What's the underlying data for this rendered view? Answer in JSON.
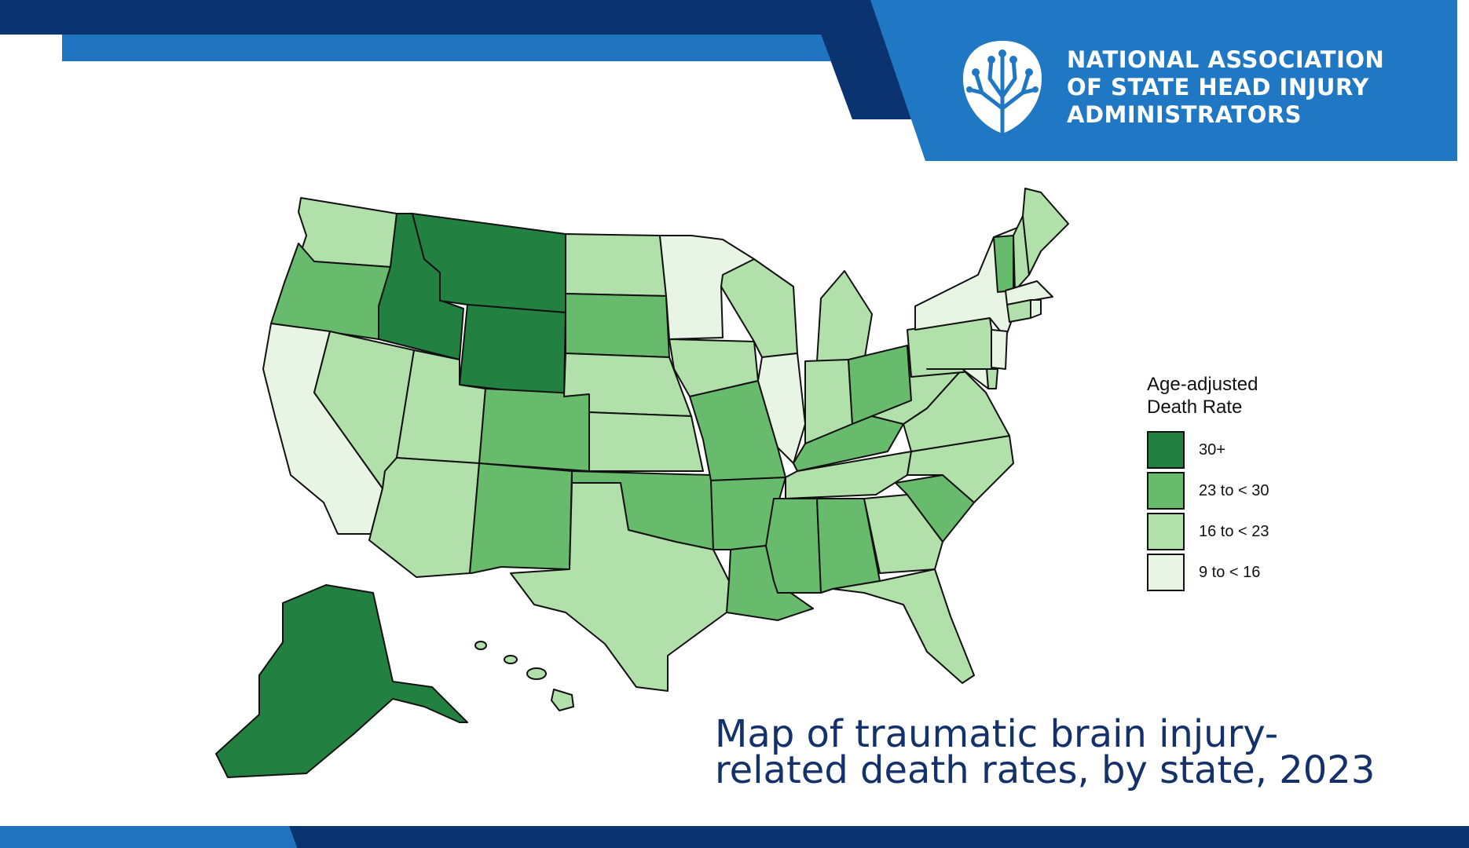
{
  "organization": {
    "name_lines": [
      "NATIONAL ASSOCIATION",
      "OF STATE HEAD INJURY",
      "ADMINISTRATORS"
    ],
    "logo_icon": "brain-tree-icon"
  },
  "colors": {
    "navy": "#0b3370",
    "blue": "#1f73bf",
    "bright_blue": "#2b80cf",
    "caption": "#14316b",
    "state_border": "#111111"
  },
  "legend": {
    "title_lines": [
      "Age-adjusted",
      "Death Rate"
    ],
    "categories": [
      {
        "label": "30+",
        "color": "#228040"
      },
      {
        "label": "23 to < 30",
        "color": "#68ba6c"
      },
      {
        "label": "16 to < 23",
        "color": "#b2e0ab"
      },
      {
        "label": "9 to < 16",
        "color": "#e9f5e4"
      }
    ]
  },
  "caption_lines": [
    "Map of traumatic brain injury-",
    "related death rates, by state, 2023"
  ],
  "map_data": {
    "type": "choropleth",
    "states": {
      "WA": "16 to < 23",
      "OR": "23 to < 30",
      "CA": "9 to < 16",
      "NV": "16 to < 23",
      "ID": "30+",
      "MT": "30+",
      "WY": "30+",
      "UT": "16 to < 23",
      "AZ": "16 to < 23",
      "CO": "23 to < 30",
      "NM": "23 to < 30",
      "ND": "16 to < 23",
      "SD": "23 to < 30",
      "NE": "16 to < 23",
      "KS": "16 to < 23",
      "OK": "23 to < 30",
      "TX": "16 to < 23",
      "MN": "9 to < 16",
      "IA": "16 to < 23",
      "MO": "23 to < 30",
      "AR": "23 to < 30",
      "LA": "23 to < 30",
      "WI": "16 to < 23",
      "IL": "9 to < 16",
      "MI": "16 to < 23",
      "IN": "16 to < 23",
      "OH": "23 to < 30",
      "KY": "23 to < 30",
      "TN": "16 to < 23",
      "MS": "23 to < 30",
      "AL": "23 to < 30",
      "GA": "16 to < 23",
      "FL": "16 to < 23",
      "SC": "23 to < 30",
      "NC": "16 to < 23",
      "VA": "16 to < 23",
      "WV": "16 to < 23",
      "PA": "16 to < 23",
      "NY": "9 to < 16",
      "VT": "23 to < 30",
      "NH": "16 to < 23",
      "ME": "16 to < 23",
      "MA": "9 to < 16",
      "CT": "16 to < 23",
      "RI": "9 to < 16",
      "NJ": "9 to < 16",
      "DE": "16 to < 23",
      "MD": "9 to < 16",
      "AK": "30+",
      "HI": "16 to < 23"
    }
  }
}
